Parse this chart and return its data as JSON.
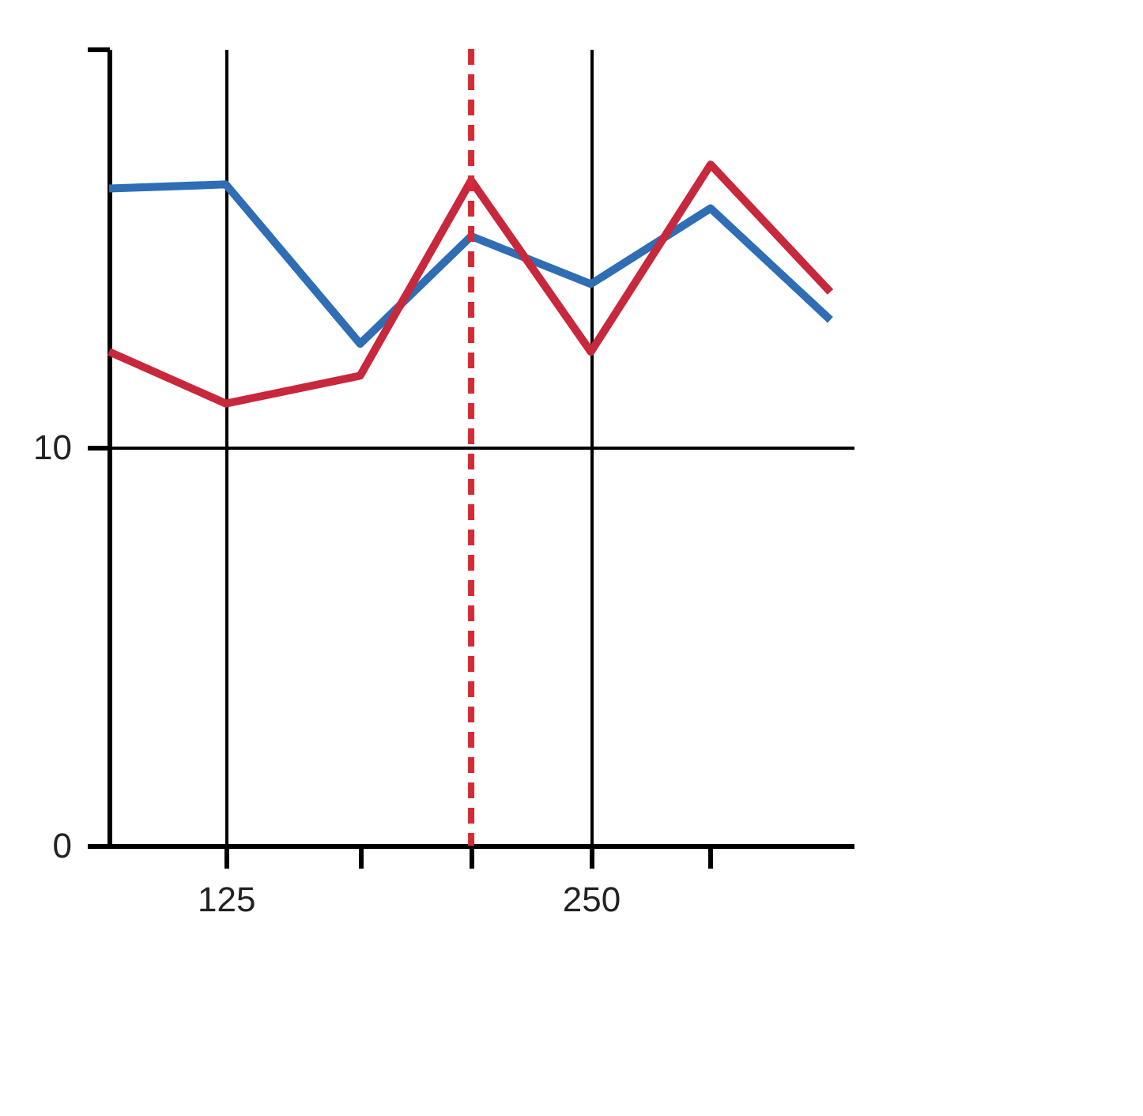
{
  "chart_data": {
    "type": "line",
    "x": [
      85,
      125,
      171,
      209,
      250,
      291,
      332
    ],
    "series": [
      {
        "color": "#2f6db5",
        "values": [
          16.5,
          16.6,
          12.6,
          15.3,
          14.1,
          16.0,
          13.2
        ]
      },
      {
        "color": "#c8283c",
        "values": [
          12.4,
          11.1,
          11.8,
          16.7,
          12.4,
          17.1,
          13.9
        ]
      }
    ],
    "xlim": [
      85,
      340
    ],
    "ylim": [
      0,
      20
    ],
    "xticks": [
      125,
      250,
      {
        "value": 171,
        "label": null
      },
      {
        "value": 209,
        "label": null
      },
      {
        "value": 291,
        "label": null
      }
    ],
    "yticks": [
      0,
      10,
      {
        "value": 20,
        "label": null
      }
    ],
    "grid": true,
    "marker": "none",
    "line_style": "solid",
    "ref_lines": [
      {
        "axis": "x",
        "value": 209,
        "color": "#d62a35",
        "line_style": "dashed"
      }
    ]
  }
}
